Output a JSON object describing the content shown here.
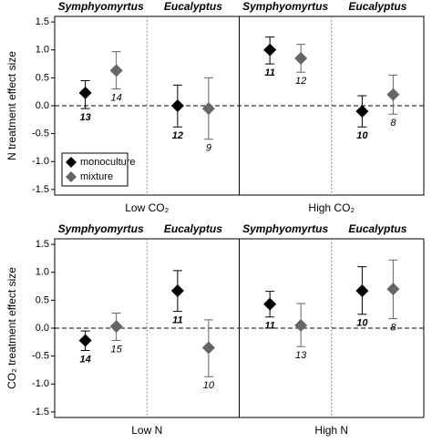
{
  "chart_data": [
    {
      "type": "dotplot",
      "ylabel": "N treatment effect size",
      "groups": [
        "Symphyomyrtus",
        "Eucalyptus",
        "Symphyomyrtus",
        "Eucalyptus"
      ],
      "conditions": [
        "Low CO₂",
        "High CO₂"
      ],
      "ylim": [
        -1.6,
        1.6
      ],
      "yticks": [
        -1.5,
        {
          "value": -1,
          "label": "-1.0"
        },
        -0.5,
        {
          "value": 0,
          "label": "0.0"
        },
        0.5,
        {
          "value": 1,
          "label": "1.0"
        },
        1.5
      ],
      "legend": "lower left",
      "series": [
        {
          "name": "monoculture",
          "color": "#000000",
          "values": [
            0.23,
            0,
            1.0,
            -0.1
          ],
          "lower": [
            -0.05,
            -0.38,
            0.75,
            -0.38
          ],
          "upper": [
            0.45,
            0.37,
            1.23,
            0.18
          ],
          "n": [
            13,
            12,
            11,
            10
          ]
        },
        {
          "name": "mixture",
          "color": "#666666",
          "values": [
            0.63,
            -0.05,
            0.85,
            0.2
          ],
          "lower": [
            0.3,
            -0.6,
            0.6,
            -0.15
          ],
          "upper": [
            0.97,
            0.5,
            1.1,
            0.55
          ],
          "n": [
            14,
            9,
            12,
            8
          ]
        }
      ]
    },
    {
      "type": "dotplot",
      "ylabel": "CO₂ treatment effect size",
      "groups": [
        "Symphyomyrtus",
        "Eucalyptus",
        "Symphyomyrtus",
        "Eucalyptus"
      ],
      "conditions": [
        "Low N",
        "High N"
      ],
      "ylim": [
        -1.6,
        1.6
      ],
      "yticks": [
        -1.5,
        {
          "value": -1,
          "label": "-1.0"
        },
        -0.5,
        {
          "value": 0,
          "label": "0.0"
        },
        0.5,
        {
          "value": 1,
          "label": "1.0"
        },
        1.5
      ],
      "series": [
        {
          "color": "#000000",
          "values": [
            -0.22,
            0.67,
            0.43,
            0.67
          ],
          "lower": [
            -0.4,
            0.3,
            0.2,
            0.25
          ],
          "upper": [
            -0.05,
            1.03,
            0.66,
            1.1
          ],
          "n": [
            14,
            11,
            11,
            10
          ]
        },
        {
          "color": "#666666",
          "values": [
            0.03,
            -0.35,
            0.05,
            0.7
          ],
          "lower": [
            -0.22,
            -0.87,
            -0.33,
            0.17
          ],
          "upper": [
            0.27,
            0.15,
            0.44,
            1.22
          ],
          "n": [
            15,
            10,
            13,
            8
          ]
        }
      ]
    }
  ]
}
